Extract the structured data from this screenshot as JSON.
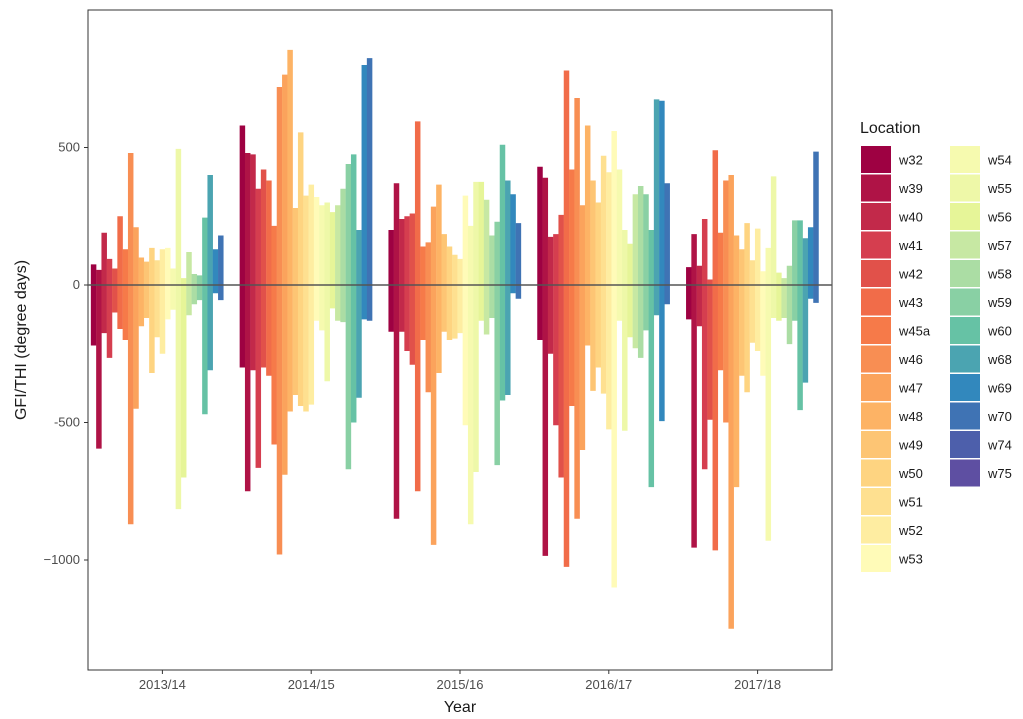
{
  "chart_data": {
    "type": "bar",
    "xlabel": "Year",
    "ylabel": "GFI/THI (degree days)",
    "ylim": [
      -1400,
      1000
    ],
    "yticks": [
      -1000,
      -500,
      0,
      500
    ],
    "ytick_labels": [
      "−1000",
      "-500",
      "0",
      "500"
    ],
    "categories": [
      "2013/14",
      "2014/15",
      "2015/16",
      "2016/17",
      "2017/18"
    ],
    "grid": false,
    "legend_title": "Location",
    "legend_position": "right",
    "series": [
      {
        "name": "w32",
        "color": "#9e0142",
        "pos": [
          75,
          580,
          200,
          430,
          65
        ],
        "neg": [
          -220,
          -300,
          -170,
          -200,
          -125
        ]
      },
      {
        "name": "w39",
        "color": "#af1346",
        "pos": [
          55,
          480,
          370,
          390,
          185
        ],
        "neg": [
          -595,
          -750,
          -850,
          -985,
          -955
        ]
      },
      {
        "name": "w40",
        "color": "#c2294a",
        "pos": [
          190,
          475,
          240,
          175,
          70
        ],
        "neg": [
          -175,
          -310,
          -170,
          -250,
          -150
        ]
      },
      {
        "name": "w41",
        "color": "#d53e4f",
        "pos": [
          95,
          350,
          250,
          185,
          240
        ],
        "neg": [
          -265,
          -665,
          -240,
          -510,
          -670
        ]
      },
      {
        "name": "w42",
        "color": "#e1514a",
        "pos": [
          60,
          420,
          260,
          255,
          20
        ],
        "neg": [
          -100,
          -300,
          -290,
          -700,
          -490
        ]
      },
      {
        "name": "w43",
        "color": "#f16c49",
        "pos": [
          250,
          380,
          595,
          780,
          490
        ],
        "neg": [
          -160,
          -330,
          -750,
          -1025,
          -965
        ]
      },
      {
        "name": "w45a",
        "color": "#f67a49",
        "pos": [
          130,
          215,
          140,
          420,
          190
        ],
        "neg": [
          -200,
          -580,
          -200,
          -440,
          -310
        ]
      },
      {
        "name": "w46",
        "color": "#f88e53",
        "pos": [
          480,
          720,
          155,
          680,
          380
        ],
        "neg": [
          -870,
          -980,
          -390,
          -850,
          -500
        ]
      },
      {
        "name": "w47",
        "color": "#fba35c",
        "pos": [
          210,
          765,
          285,
          290,
          400
        ],
        "neg": [
          -450,
          -690,
          -945,
          -600,
          -1250
        ]
      },
      {
        "name": "w48",
        "color": "#fdb365",
        "pos": [
          100,
          855,
          365,
          580,
          180
        ],
        "neg": [
          -150,
          -460,
          -320,
          -220,
          -735
        ]
      },
      {
        "name": "w49",
        "color": "#fdc574",
        "pos": [
          85,
          280,
          185,
          380,
          130
        ],
        "neg": [
          -120,
          -400,
          -170,
          -385,
          -330
        ]
      },
      {
        "name": "w50",
        "color": "#fed481",
        "pos": [
          135,
          555,
          140,
          300,
          225
        ],
        "neg": [
          -320,
          -440,
          -200,
          -300,
          -390
        ]
      },
      {
        "name": "w51",
        "color": "#fee090",
        "pos": [
          90,
          325,
          110,
          470,
          90
        ],
        "neg": [
          -190,
          -460,
          -195,
          -395,
          -210
        ]
      },
      {
        "name": "w52",
        "color": "#feeda1",
        "pos": [
          130,
          365,
          95,
          410,
          205
        ],
        "neg": [
          -250,
          -435,
          -175,
          -525,
          -240
        ]
      },
      {
        "name": "w53",
        "color": "#fffbb8",
        "pos": [
          135,
          320,
          325,
          560,
          50
        ],
        "neg": [
          -125,
          -130,
          -510,
          -1100,
          -330
        ]
      },
      {
        "name": "w54",
        "color": "#f6faaf",
        "pos": [
          60,
          290,
          215,
          420,
          135
        ],
        "neg": [
          -90,
          -165,
          -870,
          -130,
          -930
        ]
      },
      {
        "name": "w55",
        "color": "#eef8a8",
        "pos": [
          495,
          300,
          375,
          200,
          395
        ],
        "neg": [
          -815,
          -350,
          -680,
          -530,
          -120
        ]
      },
      {
        "name": "w56",
        "color": "#e6f598",
        "pos": [
          25,
          265,
          375,
          150,
          45
        ],
        "neg": [
          -700,
          -85,
          -130,
          -190,
          -130
        ]
      },
      {
        "name": "w57",
        "color": "#c7e8a3",
        "pos": [
          120,
          290,
          310,
          330,
          25
        ],
        "neg": [
          -110,
          -130,
          -180,
          -230,
          -120
        ]
      },
      {
        "name": "w58",
        "color": "#abdda4",
        "pos": [
          40,
          350,
          180,
          360,
          70
        ],
        "neg": [
          -70,
          -135,
          -120,
          -265,
          -215
        ]
      },
      {
        "name": "w59",
        "color": "#89d0a4",
        "pos": [
          35,
          440,
          230,
          330,
          235
        ],
        "neg": [
          -55,
          -670,
          -655,
          -165,
          -130
        ]
      },
      {
        "name": "w60",
        "color": "#66c2a5",
        "pos": [
          245,
          475,
          510,
          200,
          235
        ],
        "neg": [
          -470,
          -500,
          -420,
          -735,
          -455
        ]
      },
      {
        "name": "w68",
        "color": "#4ba4b1",
        "pos": [
          400,
          200,
          380,
          675,
          170
        ],
        "neg": [
          -310,
          -410,
          -400,
          -110,
          -355
        ]
      },
      {
        "name": "w69",
        "color": "#3288bd",
        "pos": [
          130,
          800,
          330,
          670,
          210
        ],
        "neg": [
          -30,
          -125,
          -30,
          -495,
          -50
        ]
      },
      {
        "name": "w70",
        "color": "#3f73b4",
        "pos": [
          180,
          825,
          225,
          370,
          485
        ],
        "neg": [
          -55,
          -130,
          -50,
          -70,
          -65
        ]
      },
      {
        "name": "w74",
        "color": "#4d5fab",
        "pos": [
          0,
          0,
          0,
          0,
          0
        ],
        "neg": [
          0,
          0,
          0,
          0,
          0
        ]
      },
      {
        "name": "w75",
        "color": "#5e4fa2",
        "pos": [
          0,
          0,
          0,
          0,
          0
        ],
        "neg": [
          0,
          0,
          0,
          0,
          0
        ]
      }
    ]
  }
}
